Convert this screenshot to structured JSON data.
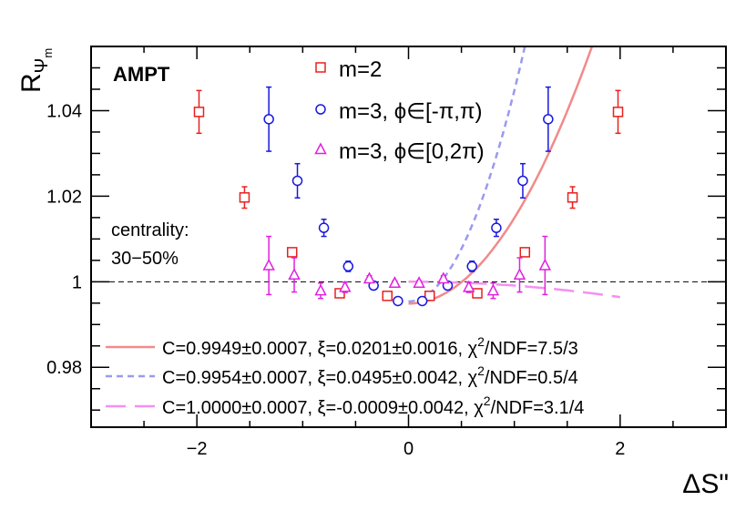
{
  "chart_data": {
    "type": "scatter",
    "label": "AMPT",
    "xlabel": "ΔS\"",
    "ylabel": "R",
    "ylabel_sub": "Ψ",
    "ylabel_subsub": "m",
    "xlim": [
      -3,
      3
    ],
    "ylim": [
      0.966,
      1.055
    ],
    "x_ticks": [
      -2,
      0,
      2
    ],
    "x_tick_labels": [
      "−2",
      "0",
      "2"
    ],
    "y_ticks": [
      0.98,
      1.0,
      1.02,
      1.04
    ],
    "y_tick_labels": [
      "0.98",
      "1",
      "1.02",
      "1.04"
    ],
    "reference_line": 1.0,
    "centrality_label": "centrality:",
    "centrality_value": "30−50%",
    "series": [
      {
        "name": "m=2",
        "marker": "square",
        "color": "#e8201e",
        "points": [
          {
            "x": -1.98,
            "y": 1.0397,
            "err": 0.005
          },
          {
            "x": -1.55,
            "y": 1.0197,
            "err": 0.0025
          },
          {
            "x": -1.1,
            "y": 1.0069,
            "err": 0.001
          },
          {
            "x": -0.65,
            "y": 0.9973,
            "err": 0.0007
          },
          {
            "x": -0.2,
            "y": 0.9967,
            "err": 0.0005
          },
          {
            "x": 0.2,
            "y": 0.9967,
            "err": 0.0005
          },
          {
            "x": 0.65,
            "y": 0.9973,
            "err": 0.0007
          },
          {
            "x": 1.1,
            "y": 1.0069,
            "err": 0.001
          },
          {
            "x": 1.55,
            "y": 1.0197,
            "err": 0.0025
          },
          {
            "x": 1.98,
            "y": 1.0397,
            "err": 0.005
          }
        ]
      },
      {
        "name": "m=3, ϕ∈[-π,π)",
        "marker": "circle",
        "color": "#1818e0",
        "points": [
          {
            "x": -1.32,
            "y": 1.038,
            "err": 0.0075
          },
          {
            "x": -1.05,
            "y": 1.0236,
            "err": 0.004
          },
          {
            "x": -0.8,
            "y": 1.0126,
            "err": 0.002
          },
          {
            "x": -0.57,
            "y": 1.0036,
            "err": 0.0012
          },
          {
            "x": -0.33,
            "y": 0.9991,
            "err": 0.0007
          },
          {
            "x": -0.1,
            "y": 0.9955,
            "err": 0.0005
          },
          {
            "x": 0.13,
            "y": 0.9955,
            "err": 0.0005
          },
          {
            "x": 0.37,
            "y": 0.9991,
            "err": 0.0007
          },
          {
            "x": 0.6,
            "y": 1.0036,
            "err": 0.0012
          },
          {
            "x": 0.83,
            "y": 1.0126,
            "err": 0.002
          },
          {
            "x": 1.08,
            "y": 1.0236,
            "err": 0.004
          },
          {
            "x": 1.32,
            "y": 1.038,
            "err": 0.0075
          }
        ]
      },
      {
        "name": "m=3, ϕ∈[0,2π)",
        "marker": "triangle",
        "color": "#e020e0",
        "points": [
          {
            "x": -1.32,
            "y": 1.0038,
            "err": 0.0068
          },
          {
            "x": -1.08,
            "y": 1.0016,
            "err": 0.004
          },
          {
            "x": -0.83,
            "y": 0.9979,
            "err": 0.0018
          },
          {
            "x": -0.6,
            "y": 0.9987,
            "err": 0.0012
          },
          {
            "x": -0.37,
            "y": 1.0007,
            "err": 0.0007
          },
          {
            "x": -0.13,
            "y": 0.9997,
            "err": 0.0005
          },
          {
            "x": 0.1,
            "y": 0.9997,
            "err": 0.0005
          },
          {
            "x": 0.33,
            "y": 1.0007,
            "err": 0.0007
          },
          {
            "x": 0.57,
            "y": 0.9987,
            "err": 0.0012
          },
          {
            "x": 0.8,
            "y": 0.9979,
            "err": 0.0018
          },
          {
            "x": 1.05,
            "y": 1.0016,
            "err": 0.004
          },
          {
            "x": 1.29,
            "y": 1.0038,
            "err": 0.0068
          }
        ]
      }
    ],
    "fits": [
      {
        "label": "C=0.9949±0.0007, ξ=0.0201±0.0016,   χ",
        "chi_label": "2",
        "chi_tail": "/NDF=7.5/3",
        "style": "solid",
        "color": "#f28a8a",
        "C": 0.9949,
        "xi": 0.0201,
        "x_range": [
          0.0,
          2.2
        ]
      },
      {
        "label": "C=0.9954±0.0007, ξ=0.0495±0.0042,  χ",
        "chi_label": "2",
        "chi_tail": "/NDF=0.5/4",
        "style": "dashed",
        "color": "#9a9af0",
        "C": 0.9954,
        "xi": 0.0495,
        "x_range": [
          0.0,
          1.4
        ]
      },
      {
        "label": "C=1.0000±0.0007, ξ=-0.0009±0.0042, χ",
        "chi_label": "2",
        "chi_tail": "/NDF=3.1/4",
        "style": "longdash",
        "color": "#f590f0",
        "C": 1.0,
        "xi": -0.0009,
        "x_range": [
          0.0,
          2.0
        ]
      }
    ]
  }
}
